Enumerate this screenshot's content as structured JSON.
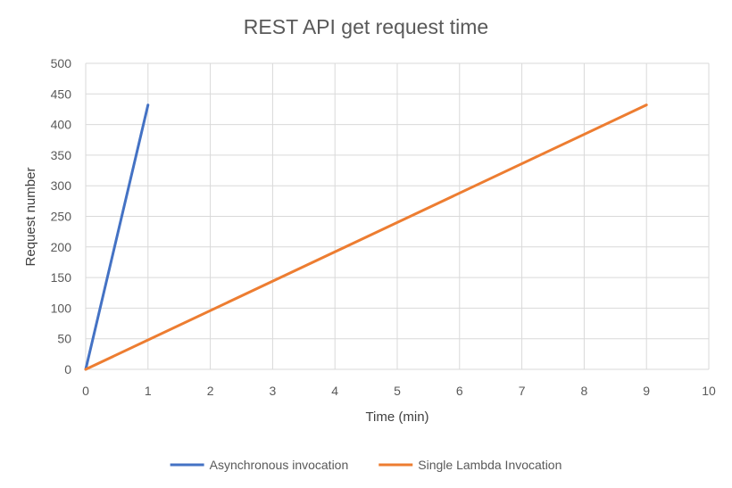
{
  "chart_data": {
    "type": "line",
    "title": "REST API get request time",
    "xlabel": "Time (min)",
    "ylabel": "Request number",
    "xlim": [
      0,
      10
    ],
    "ylim": [
      0,
      500
    ],
    "x_ticks": [
      0,
      1,
      2,
      3,
      4,
      5,
      6,
      7,
      8,
      9,
      10
    ],
    "y_ticks": [
      0,
      50,
      100,
      150,
      200,
      250,
      300,
      350,
      400,
      450,
      500
    ],
    "grid": true,
    "legend_position": "bottom",
    "series": [
      {
        "name": "Asynchronous invocation",
        "color": "#4472c4",
        "points": [
          [
            0,
            0
          ],
          [
            1,
            432
          ]
        ]
      },
      {
        "name": "Single Lambda Invocation",
        "color": "#ed7d31",
        "points": [
          [
            0,
            0
          ],
          [
            9,
            432
          ]
        ]
      }
    ]
  }
}
